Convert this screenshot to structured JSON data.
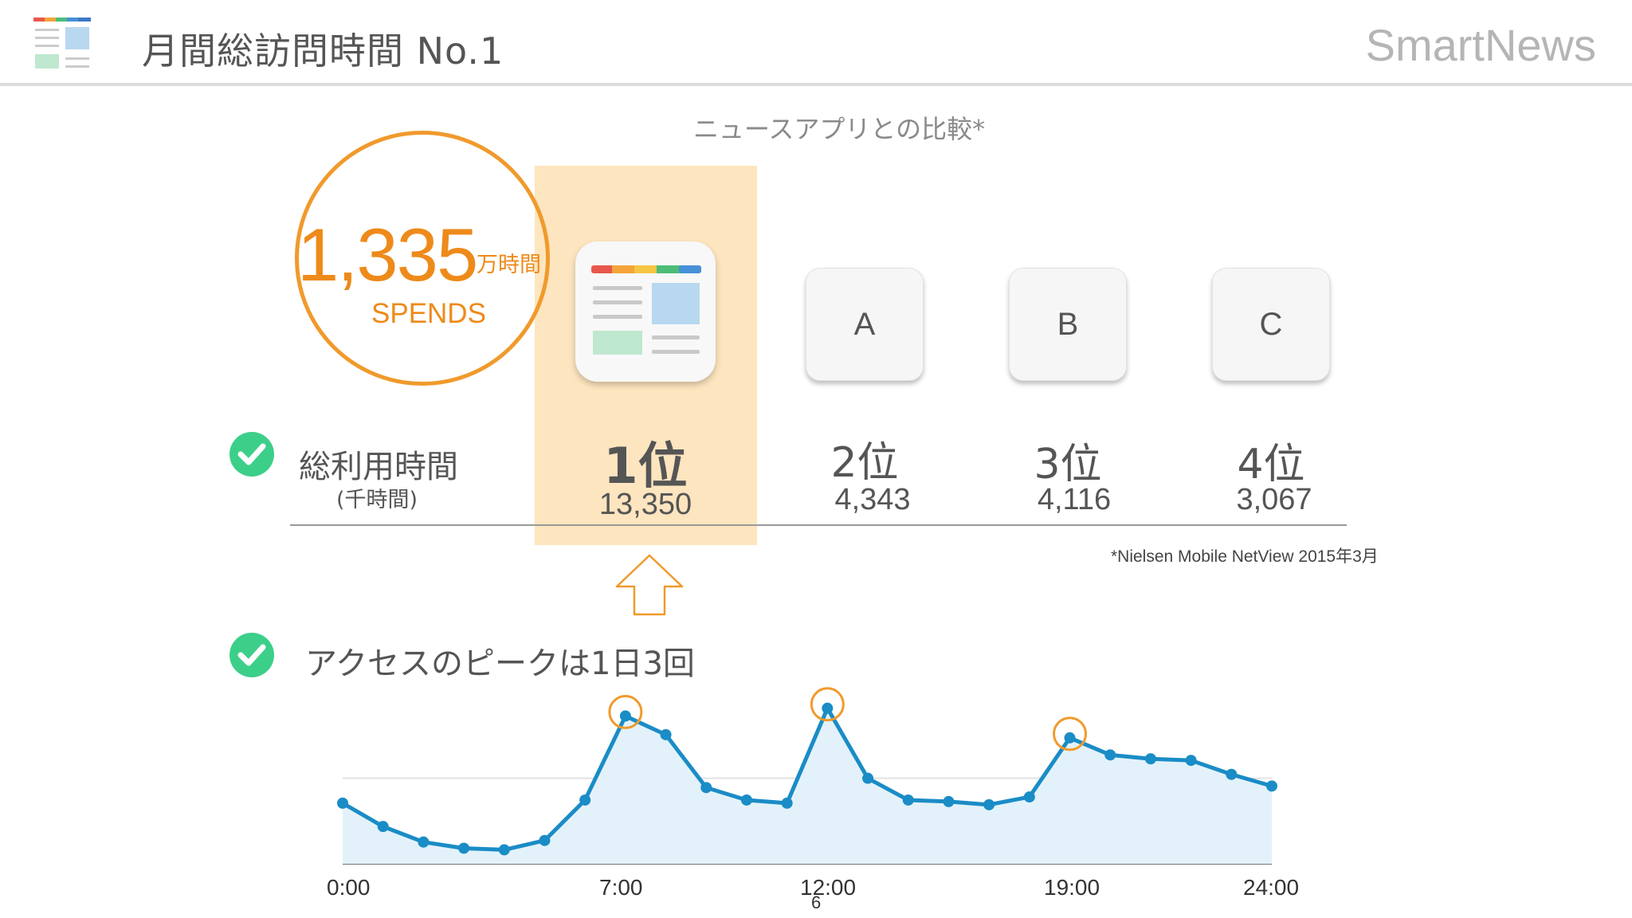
{
  "header": {
    "title": "月間総訪問時間 No.1",
    "brand": "SmartNews",
    "logo_icon": "smartnews-app-icon"
  },
  "comparison": {
    "subtitle": "ニュースアプリとの比較*",
    "spends_value": "1,335",
    "spends_unit": "万時間",
    "spends_label": "SPENDS",
    "apps": [
      {
        "icon": "smartnews-app-icon",
        "label": ""
      },
      {
        "icon": "app-tile",
        "label": "A"
      },
      {
        "icon": "app-tile",
        "label": "B"
      },
      {
        "icon": "app-tile",
        "label": "C"
      }
    ],
    "row_label": "総利用時間",
    "row_sublabel": "(千時間)",
    "ranks": [
      {
        "rank": "1位",
        "value": "13,350"
      },
      {
        "rank": "2位",
        "value": "4,343"
      },
      {
        "rank": "3位",
        "value": "4,116"
      },
      {
        "rank": "4位",
        "value": "3,067"
      }
    ],
    "source": "*Nielsen Mobile NetView 2015年3月"
  },
  "peak": {
    "label": "アクセスのピークは1日3回"
  },
  "chart_data": {
    "type": "area",
    "x_ticks": [
      "0:00",
      "7:00",
      "12:00",
      "19:00",
      "24:00"
    ],
    "x": [
      0,
      1,
      2,
      3,
      4,
      5,
      6,
      7,
      8,
      9,
      10,
      11,
      12,
      13,
      14,
      15,
      16,
      17,
      18,
      19,
      20,
      21,
      22,
      23
    ],
    "values": [
      78,
      48,
      28,
      20,
      18,
      30,
      82,
      190,
      166,
      98,
      82,
      78,
      200,
      110,
      82,
      80,
      76,
      86,
      162,
      140,
      135,
      133,
      115,
      100
    ],
    "ylim": [
      0,
      250
    ],
    "peaks": [
      7,
      12,
      18
    ],
    "grid": "one horizontal gridline",
    "colors": {
      "line": "#1a8cc6",
      "fill": "#e3f2fa",
      "peak_marker": "#f09a2c"
    }
  },
  "page_number": "6",
  "colors": {
    "accent": "#f09a2c",
    "check": "#3ccf8a",
    "highlight": "#fde5bf"
  }
}
